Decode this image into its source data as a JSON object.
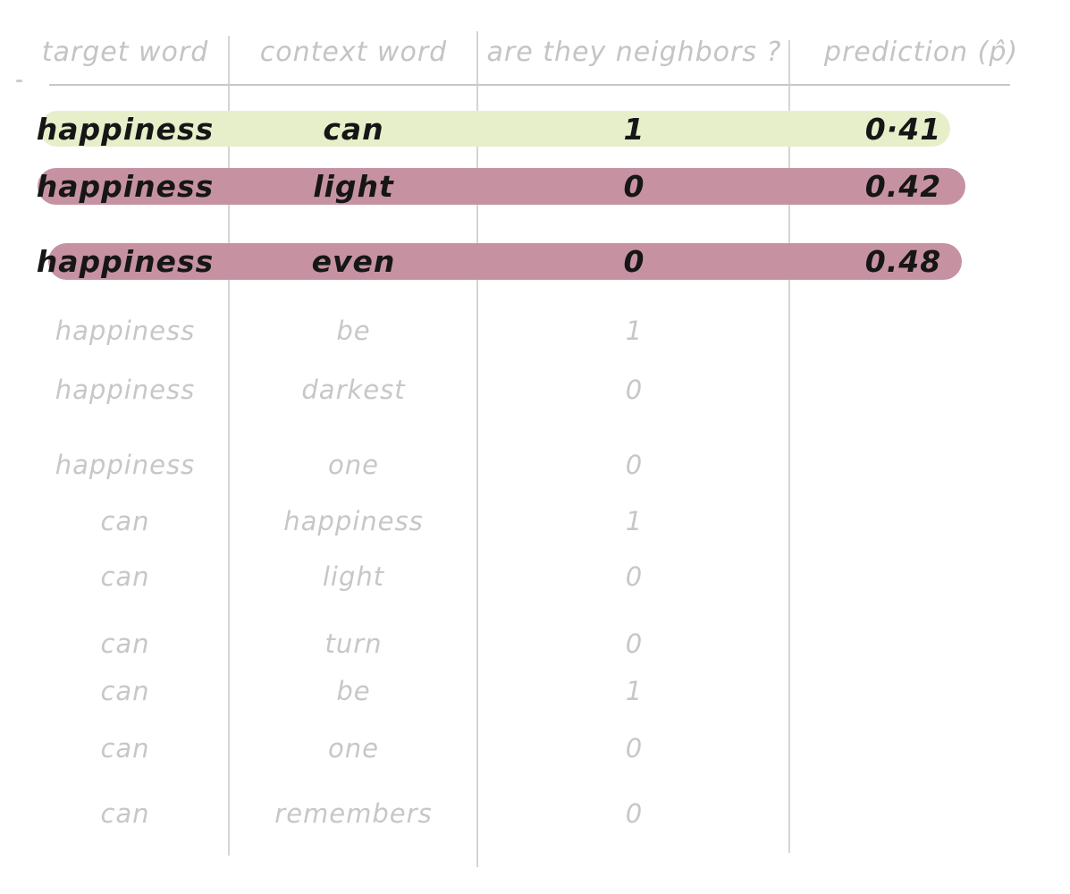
{
  "table": {
    "columns": [
      {
        "label": "target word"
      },
      {
        "label": "context word"
      },
      {
        "label": "are they neighbors ?"
      },
      {
        "label": "prediction (p̂)"
      }
    ],
    "rows": [
      {
        "target": "happiness",
        "context": "can",
        "neighbors": "1",
        "prediction": "0·41",
        "highlight": "green"
      },
      {
        "target": "happiness",
        "context": "light",
        "neighbors": "0",
        "prediction": "0.42",
        "highlight": "pink"
      },
      {
        "target": "happiness",
        "context": "even",
        "neighbors": "0",
        "prediction": "0.48",
        "highlight": "pink"
      },
      {
        "target": "happiness",
        "context": "be",
        "neighbors": "1",
        "prediction": "",
        "highlight": "none"
      },
      {
        "target": "happiness",
        "context": "darkest",
        "neighbors": "0",
        "prediction": "",
        "highlight": "none"
      },
      {
        "target": "happiness",
        "context": "one",
        "neighbors": "0",
        "prediction": "",
        "highlight": "none"
      },
      {
        "target": "can",
        "context": "happiness",
        "neighbors": "1",
        "prediction": "",
        "highlight": "none"
      },
      {
        "target": "can",
        "context": "light",
        "neighbors": "0",
        "prediction": "",
        "highlight": "none"
      },
      {
        "target": "can",
        "context": "turn",
        "neighbors": "0",
        "prediction": "",
        "highlight": "none"
      },
      {
        "target": "can",
        "context": "be",
        "neighbors": "1",
        "prediction": "",
        "highlight": "none"
      },
      {
        "target": "can",
        "context": "one",
        "neighbors": "0",
        "prediction": "",
        "highlight": "none"
      },
      {
        "target": "can",
        "context": "remembers",
        "neighbors": "0",
        "prediction": "",
        "highlight": "none"
      }
    ]
  },
  "colors": {
    "highlight_green": "#e7efca",
    "highlight_pink": "#c692a2",
    "ink_black": "#161616",
    "pencil_gray": "#c7c7c9",
    "line_gray": "#d5d5d6"
  },
  "chart_data": {
    "type": "table",
    "title": "",
    "columns": [
      "target word",
      "context word",
      "are they neighbors ?",
      "prediction (p̂)"
    ],
    "rows": [
      [
        "happiness",
        "can",
        1,
        0.41
      ],
      [
        "happiness",
        "light",
        0,
        0.42
      ],
      [
        "happiness",
        "even",
        0,
        0.48
      ],
      [
        "happiness",
        "be",
        1,
        null
      ],
      [
        "happiness",
        "darkest",
        0,
        null
      ],
      [
        "happiness",
        "one",
        0,
        null
      ],
      [
        "can",
        "happiness",
        1,
        null
      ],
      [
        "can",
        "light",
        0,
        null
      ],
      [
        "can",
        "turn",
        0,
        null
      ],
      [
        "can",
        "be",
        1,
        null
      ],
      [
        "can",
        "one",
        0,
        null
      ],
      [
        "can",
        "remembers",
        0,
        null
      ]
    ],
    "layout": {
      "highlighted_rows": [
        0,
        1,
        2
      ],
      "grid": "column-separators-and-header-underline",
      "legend": "none"
    }
  }
}
